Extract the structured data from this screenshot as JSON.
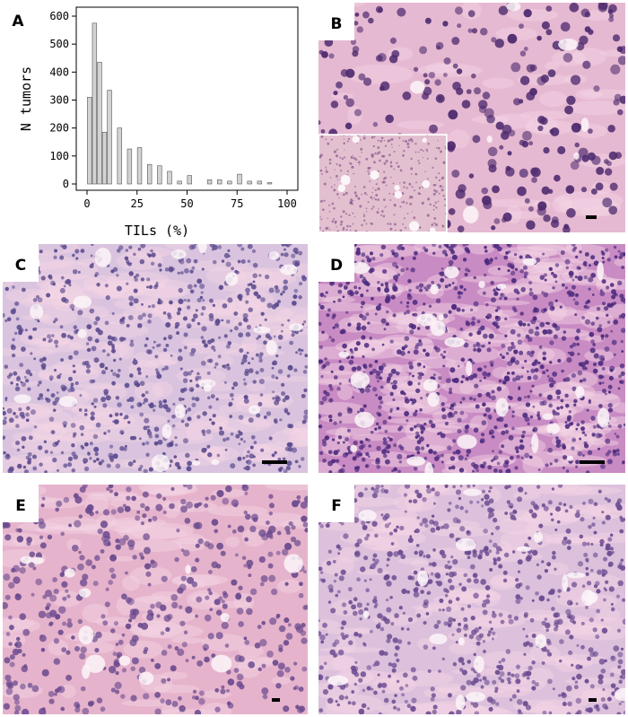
{
  "chart_data": {
    "type": "histogram",
    "x_label": "TILs (%)",
    "y_label": "N tumors",
    "bins": [
      0,
      2.5,
      5,
      7.5,
      10,
      12.5,
      15,
      17.5,
      20,
      22.5,
      25,
      27.5,
      30,
      32.5,
      35,
      37.5,
      40,
      42.5,
      45,
      47.5,
      50,
      52.5,
      55,
      57.5,
      60,
      62.5,
      65,
      67.5,
      70,
      72.5,
      75,
      77.5,
      80,
      82.5,
      85,
      87.5,
      90,
      92.5,
      95,
      97.5,
      100
    ],
    "values": [
      310,
      575,
      435,
      185,
      335,
      0,
      200,
      0,
      125,
      0,
      130,
      0,
      70,
      0,
      65,
      0,
      45,
      0,
      10,
      0,
      30,
      0,
      0,
      0,
      15,
      0,
      15,
      0,
      10,
      0,
      35,
      0,
      10,
      0,
      10,
      0,
      5,
      0,
      0,
      0
    ],
    "color": "#d3d3d3",
    "xlim": [
      0,
      100
    ],
    "ylim": [
      0,
      600
    ],
    "xticks": [
      0,
      25,
      50,
      75,
      100
    ],
    "yticks": [
      0,
      100,
      200,
      300,
      400,
      500,
      600
    ]
  },
  "panels": [
    "A",
    "B",
    "C",
    "D",
    "E",
    "F"
  ]
}
